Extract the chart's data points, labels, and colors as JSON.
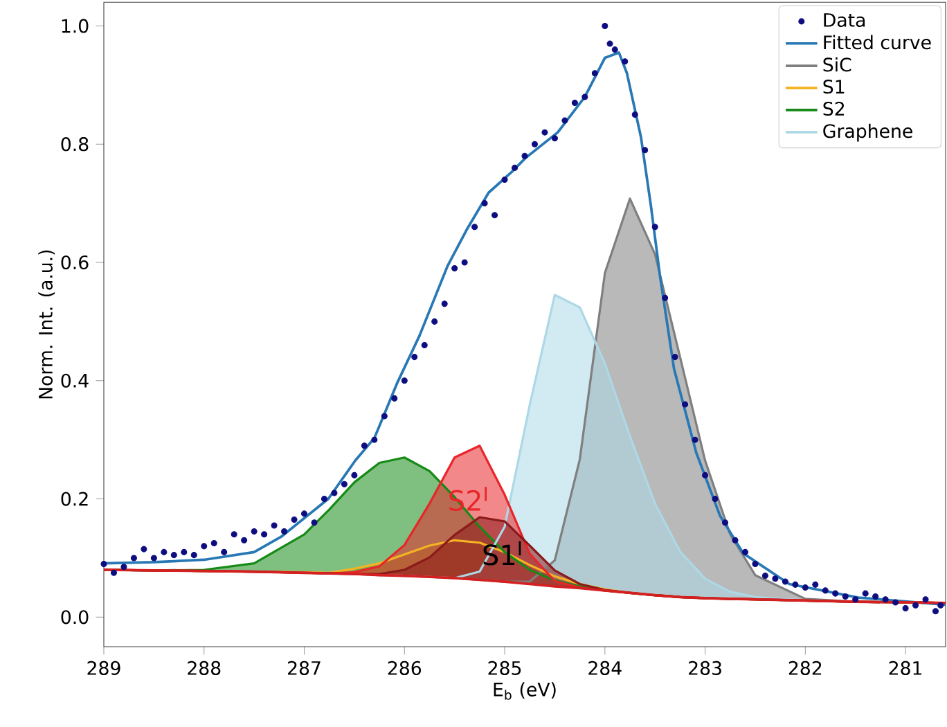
{
  "chart_data": {
    "type": "line",
    "xlabel": "E$_{b}$ (eV)",
    "ylabel": "Norm. Int. (a.u.)",
    "xlim": [
      289,
      280.6
    ],
    "ylim": [
      -0.05,
      1.04
    ],
    "xticks": [
      289,
      288,
      287,
      286,
      285,
      284,
      283,
      282,
      281
    ],
    "yticks": [
      {
        "value": 0,
        "label": "0.0"
      },
      {
        "value": 0.2,
        "label": "0.2"
      },
      {
        "value": 0.4,
        "label": "0.4"
      },
      {
        "value": 0.6,
        "label": "0.6"
      },
      {
        "value": 0.8,
        "label": "0.8"
      },
      {
        "value": 1.0,
        "label": "1.0"
      }
    ],
    "legend": "top right",
    "series": [
      {
        "name": "Data",
        "type": "scatter",
        "color": "#0d0d80",
        "x": [
          289.0,
          288.9,
          288.8,
          288.7,
          288.6,
          288.5,
          288.4,
          288.3,
          288.2,
          288.1,
          288.0,
          287.9,
          287.8,
          287.7,
          287.6,
          287.5,
          287.4,
          287.3,
          287.2,
          287.1,
          287.0,
          286.9,
          286.8,
          286.7,
          286.6,
          286.5,
          286.4,
          286.3,
          286.2,
          286.1,
          286.0,
          285.9,
          285.8,
          285.7,
          285.6,
          285.5,
          285.4,
          285.3,
          285.2,
          285.1,
          285.0,
          284.9,
          284.8,
          284.7,
          284.6,
          284.5,
          284.4,
          284.3,
          284.2,
          284.1,
          284.0,
          283.95,
          283.9,
          283.8,
          283.7,
          283.6,
          283.5,
          283.4,
          283.3,
          283.2,
          283.1,
          283.0,
          282.9,
          282.8,
          282.7,
          282.6,
          282.5,
          282.4,
          282.3,
          282.2,
          282.1,
          282.0,
          281.9,
          281.8,
          281.7,
          281.6,
          281.5,
          281.4,
          281.3,
          281.2,
          281.1,
          281.0,
          280.9,
          280.8,
          280.7,
          280.65
        ],
        "values": [
          0.09,
          0.075,
          0.085,
          0.1,
          0.115,
          0.1,
          0.11,
          0.105,
          0.11,
          0.105,
          0.12,
          0.125,
          0.11,
          0.14,
          0.13,
          0.145,
          0.14,
          0.155,
          0.145,
          0.165,
          0.175,
          0.16,
          0.2,
          0.21,
          0.225,
          0.24,
          0.29,
          0.3,
          0.34,
          0.37,
          0.4,
          0.44,
          0.46,
          0.5,
          0.53,
          0.59,
          0.6,
          0.66,
          0.7,
          0.68,
          0.74,
          0.76,
          0.78,
          0.8,
          0.82,
          0.81,
          0.84,
          0.87,
          0.88,
          0.92,
          1.0,
          0.97,
          0.96,
          0.94,
          0.85,
          0.79,
          0.66,
          0.54,
          0.44,
          0.36,
          0.3,
          0.24,
          0.2,
          0.16,
          0.13,
          0.11,
          0.09,
          0.07,
          0.065,
          0.06,
          0.055,
          0.05,
          0.055,
          0.045,
          0.04,
          0.035,
          0.03,
          0.04,
          0.035,
          0.03,
          0.025,
          0.015,
          0.02,
          0.03,
          0.01,
          0.02
        ]
      },
      {
        "name": "Fitted curve",
        "color": "#2878b5",
        "x": [
          289,
          288.5,
          288,
          287.5,
          287.23,
          286.76,
          286.49,
          286.3,
          286.07,
          285.85,
          285.57,
          285.38,
          285.16,
          284.93,
          284.79,
          284.47,
          284.2,
          284.0,
          283.86,
          283.78,
          283.64,
          283.54,
          283.45,
          283.31,
          283.09,
          282.85,
          282.62,
          282.16,
          281.47,
          280.6
        ],
        "values": [
          0.091,
          0.093,
          0.097,
          0.11,
          0.136,
          0.2,
          0.265,
          0.303,
          0.397,
          0.476,
          0.594,
          0.655,
          0.718,
          0.753,
          0.777,
          0.82,
          0.88,
          0.946,
          0.955,
          0.92,
          0.812,
          0.695,
          0.577,
          0.42,
          0.279,
          0.171,
          0.108,
          0.056,
          0.033,
          0.021
        ]
      },
      {
        "name": "SiC",
        "type": "area",
        "color": "#7f7f7f",
        "x": [
          289,
          288.5,
          288,
          287.5,
          287,
          286.75,
          286.5,
          286.25,
          286,
          285.75,
          285.5,
          285.25,
          285,
          284.75,
          284.5,
          284.25,
          284,
          283.75,
          283.5,
          283.25,
          283,
          282.75,
          282.5,
          282,
          281.5,
          281,
          280.6
        ],
        "values": [
          0.08,
          0.079,
          0.078,
          0.077,
          0.075,
          0.074,
          0.073,
          0.071,
          0.07,
          0.068,
          0.066,
          0.063,
          0.06,
          0.06,
          0.096,
          0.267,
          0.582,
          0.708,
          0.614,
          0.44,
          0.265,
          0.14,
          0.071,
          0.031,
          0.026,
          0.025,
          0.024
        ]
      },
      {
        "name": "S1",
        "type": "area",
        "color": "#f5b324",
        "x": [
          289,
          288.5,
          288,
          287.5,
          287,
          286.75,
          286.5,
          286.25,
          286,
          285.75,
          285.5,
          285.25,
          285,
          284.75,
          284.5,
          284.25,
          284,
          283.75,
          283.5,
          283.25,
          283,
          282.75,
          282.5,
          282,
          281.5,
          281,
          280.6
        ],
        "values": [
          0.08,
          0.079,
          0.078,
          0.077,
          0.076,
          0.075,
          0.082,
          0.091,
          0.106,
          0.121,
          0.13,
          0.126,
          0.11,
          0.088,
          0.069,
          0.056,
          0.047,
          0.041,
          0.037,
          0.034,
          0.032,
          0.031,
          0.03,
          0.028,
          0.026,
          0.025,
          0.024
        ]
      },
      {
        "name": "S2",
        "type": "area",
        "color": "#168a16",
        "x": [
          289,
          288.5,
          288,
          287.5,
          287,
          286.75,
          286.5,
          286.25,
          286,
          285.75,
          285.5,
          285.25,
          285,
          284.75,
          284.5,
          284.25,
          284,
          283.75,
          283.5,
          283.25,
          283,
          282.75,
          282.5,
          282,
          281.5,
          281,
          280.6
        ],
        "values": [
          0.08,
          0.079,
          0.08,
          0.091,
          0.14,
          0.182,
          0.228,
          0.261,
          0.27,
          0.247,
          0.203,
          0.153,
          0.11,
          0.08,
          0.062,
          0.052,
          0.045,
          0.041,
          0.037,
          0.034,
          0.032,
          0.031,
          0.03,
          0.028,
          0.026,
          0.025,
          0.024
        ]
      },
      {
        "name": "Graphene",
        "type": "area",
        "color": "#add8e6",
        "x": [
          289,
          288.5,
          288,
          287.5,
          287,
          286.75,
          286.5,
          286.25,
          286,
          285.75,
          285.5,
          285.25,
          285,
          284.75,
          284.5,
          284.25,
          284,
          283.75,
          283.5,
          283.25,
          283,
          282.75,
          282.5,
          282,
          281.5,
          281,
          280.6
        ],
        "values": [
          0.08,
          0.079,
          0.078,
          0.077,
          0.075,
          0.074,
          0.073,
          0.071,
          0.07,
          0.068,
          0.066,
          0.077,
          0.153,
          0.359,
          0.545,
          0.524,
          0.429,
          0.306,
          0.192,
          0.111,
          0.065,
          0.043,
          0.034,
          0.028,
          0.026,
          0.025,
          0.024
        ]
      },
      {
        "type": "area",
        "color": "#e8262a",
        "x": [
          289,
          288.5,
          288,
          287.5,
          287,
          286.75,
          286.5,
          286.25,
          286,
          285.75,
          285.5,
          285.25,
          285,
          284.75,
          284.5,
          284.25,
          284,
          283.75,
          283.5,
          283.25,
          283,
          282.75,
          282.5,
          282,
          281.5,
          281,
          280.6
        ],
        "values": [
          0.08,
          0.079,
          0.078,
          0.077,
          0.075,
          0.074,
          0.076,
          0.086,
          0.122,
          0.192,
          0.27,
          0.29,
          0.207,
          0.107,
          0.061,
          0.05,
          0.045,
          0.041,
          0.037,
          0.034,
          0.032,
          0.031,
          0.03,
          0.028,
          0.026,
          0.025,
          0.024
        ]
      },
      {
        "type": "area",
        "color": "#8b1a1a",
        "x": [
          289,
          288.5,
          288,
          287.5,
          287,
          286.75,
          286.5,
          286.25,
          286,
          285.75,
          285.5,
          285.25,
          285,
          284.75,
          284.5,
          284.25,
          284,
          283.75,
          283.5,
          283.25,
          283,
          282.75,
          282.5,
          282,
          281.5,
          281,
          280.6
        ],
        "values": [
          0.08,
          0.079,
          0.078,
          0.077,
          0.075,
          0.074,
          0.073,
          0.073,
          0.08,
          0.101,
          0.139,
          0.169,
          0.162,
          0.121,
          0.079,
          0.056,
          0.046,
          0.041,
          0.037,
          0.034,
          0.032,
          0.031,
          0.03,
          0.028,
          0.026,
          0.025,
          0.024
        ]
      },
      {
        "color": "#d42020",
        "x": [
          289,
          288.5,
          288,
          287.5,
          287,
          286.75,
          286.5,
          286.25,
          286,
          285.75,
          285.5,
          285.25,
          285,
          284.75,
          284.5,
          284.25,
          284,
          283.75,
          283.5,
          283.25,
          283,
          282.75,
          282.5,
          282,
          281.5,
          281,
          280.6
        ],
        "values": [
          0.08,
          0.079,
          0.078,
          0.077,
          0.075,
          0.074,
          0.073,
          0.071,
          0.07,
          0.068,
          0.066,
          0.063,
          0.06,
          0.056,
          0.052,
          0.049,
          0.045,
          0.041,
          0.037,
          0.034,
          0.032,
          0.031,
          0.03,
          0.028,
          0.026,
          0.025,
          0.024
        ]
      }
    ],
    "annotations": [
      "S2$^{I}$",
      "S1$^{I}$"
    ]
  }
}
